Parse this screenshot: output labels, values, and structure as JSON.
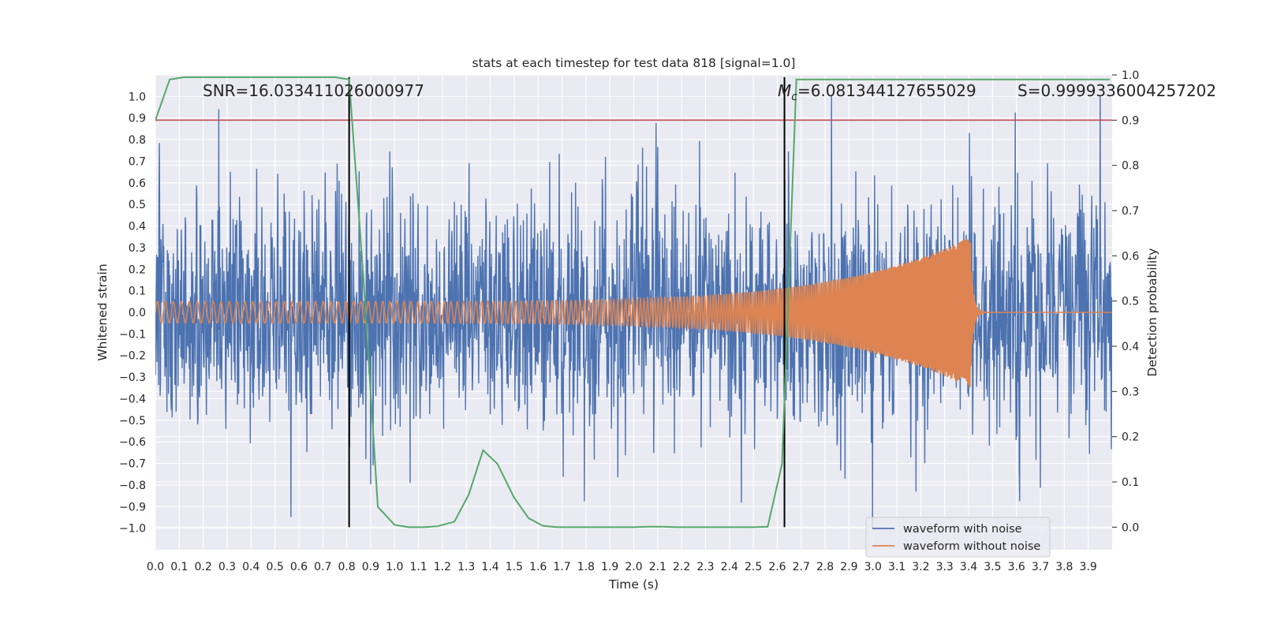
{
  "chart_data": {
    "type": "line",
    "title": "stats at each timestep for test data 818 [signal=1.0]",
    "xlabel": "Time (s)",
    "ylabel": "Whitened strain",
    "y2label": "Detection probability",
    "xlim": [
      0.0,
      4.0
    ],
    "ylim": [
      -1.1,
      1.1
    ],
    "y2lim": [
      -0.05,
      1.0
    ],
    "x_ticks": [
      "0.0",
      "0.1",
      "0.2",
      "0.3",
      "0.4",
      "0.5",
      "0.6",
      "0.7",
      "0.8",
      "0.9",
      "1.0",
      "1.1",
      "1.2",
      "1.3",
      "1.4",
      "1.5",
      "1.6",
      "1.7",
      "1.8",
      "1.9",
      "2.0",
      "2.1",
      "2.2",
      "2.3",
      "2.4",
      "2.5",
      "2.6",
      "2.7",
      "2.8",
      "2.9",
      "3.0",
      "3.1",
      "3.2",
      "3.3",
      "3.4",
      "3.5",
      "3.6",
      "3.7",
      "3.8",
      "3.9"
    ],
    "y_ticks": [
      "1.0",
      "0.9",
      "0.8",
      "0.7",
      "0.6",
      "0.5",
      "0.4",
      "0.3",
      "0.2",
      "0.1",
      "0.0",
      "−0.1",
      "−0.2",
      "−0.3",
      "−0.4",
      "−0.5",
      "−0.6",
      "−0.7",
      "−0.8",
      "−0.9",
      "−1.0"
    ],
    "y2_ticks": [
      "1.0",
      "0.9",
      "0.8",
      "0.7",
      "0.6",
      "0.5",
      "0.4",
      "0.3",
      "0.2",
      "0.1",
      "0.0"
    ],
    "grid": true,
    "legend_position": "bottom-right",
    "annotations": {
      "snr": "SNR=16.033411026000977",
      "mc_symbol": "M",
      "mc_sub": "c",
      "mc_value": "=6.081344127655029",
      "s": "S=0.9999336004257202"
    },
    "vertical_lines_x": [
      0.81,
      2.63
    ],
    "threshold_y2": 0.9,
    "series": [
      {
        "name": "waveform with noise",
        "color": "#4c72b0",
        "description_values": {
          "amplitude_range": [
            -1.0,
            1.0
          ]
        }
      },
      {
        "name": "waveform without noise",
        "color": "#dd8452",
        "chirp": {
          "t_start": 0.0,
          "t_merge": 3.41,
          "amp_start": 0.05,
          "amp_peak": 0.35,
          "f_start": 30,
          "f_end": 220
        }
      },
      {
        "name": "",
        "color": "#55a868",
        "axis": "y2",
        "x": [
          0.0,
          0.06,
          0.12,
          0.18,
          0.25,
          0.31,
          0.37,
          0.43,
          0.5,
          0.56,
          0.62,
          0.68,
          0.75,
          0.81,
          0.87,
          0.93,
          1.0,
          1.06,
          1.12,
          1.18,
          1.25,
          1.31,
          1.37,
          1.43,
          1.5,
          1.56,
          1.62,
          1.68,
          1.75,
          1.81,
          1.87,
          1.93,
          2.0,
          2.06,
          2.12,
          2.18,
          2.25,
          2.31,
          2.37,
          2.43,
          2.5,
          2.56,
          2.62,
          2.68,
          2.75,
          2.81,
          2.87,
          2.93,
          3.0,
          3.06,
          3.12,
          3.18,
          3.25,
          3.31,
          3.37,
          3.43,
          3.5,
          3.56,
          3.62,
          3.68,
          3.75,
          3.81,
          3.87,
          3.93,
          3.99
        ],
        "values": [
          0.9,
          0.99,
          0.995,
          0.995,
          0.995,
          0.995,
          0.995,
          0.995,
          0.995,
          0.995,
          0.995,
          0.995,
          0.995,
          0.99,
          0.55,
          0.045,
          0.005,
          0.0,
          0.0,
          0.002,
          0.012,
          0.072,
          0.17,
          0.14,
          0.065,
          0.02,
          0.003,
          0.0,
          0.0,
          0.0,
          0.0,
          0.0,
          0.0,
          0.001,
          0.001,
          0.0,
          0.0,
          0.0,
          0.0,
          0.0,
          0.0,
          0.001,
          0.14,
          0.99,
          0.99,
          0.99,
          0.99,
          0.99,
          0.99,
          0.99,
          0.99,
          0.99,
          0.99,
          0.99,
          0.99,
          0.99,
          0.99,
          0.99,
          0.99,
          0.99,
          0.99,
          0.99,
          0.99,
          0.99,
          0.99
        ]
      }
    ],
    "colors": {
      "background": "#eaeaf2",
      "grid": "#ffffff",
      "threshold": "#c44e52",
      "vline": "#000000"
    }
  }
}
